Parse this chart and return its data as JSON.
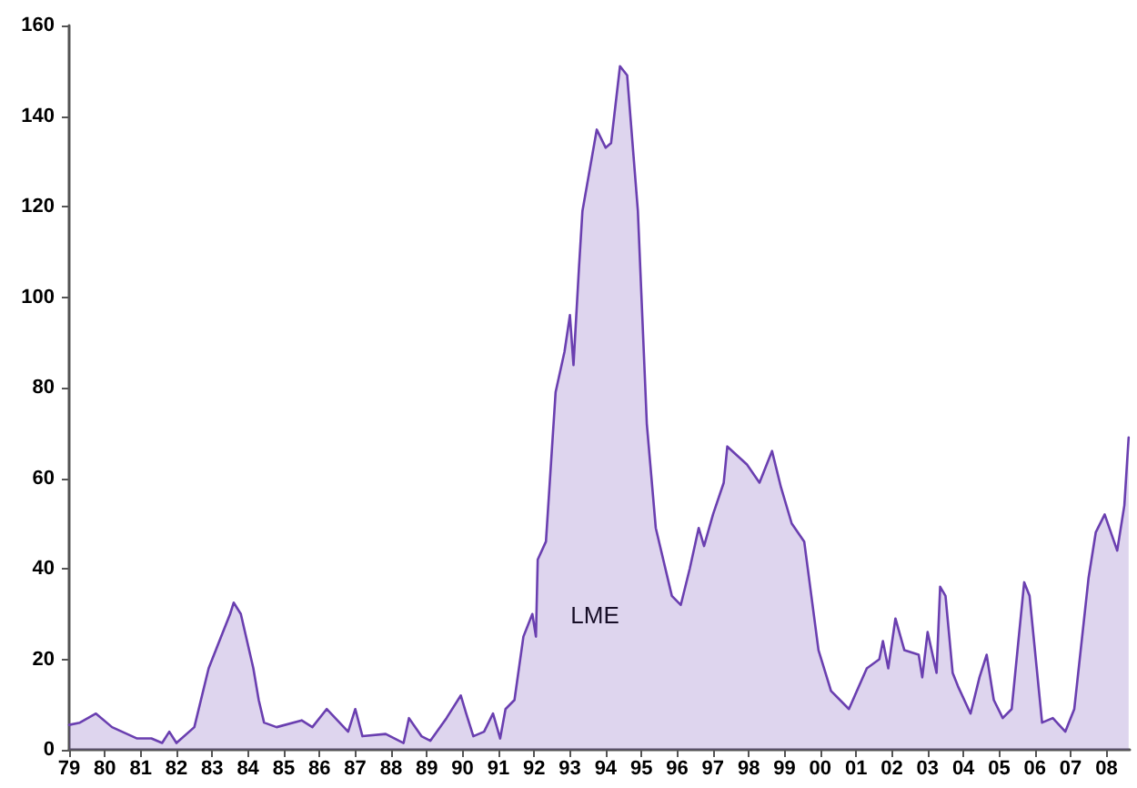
{
  "chart_data": {
    "type": "area",
    "x": [
      1979.0,
      1979.3,
      1979.75,
      1980.2,
      1980.9,
      1981.3,
      1981.6,
      1981.8,
      1982.0,
      1982.5,
      1982.9,
      1983.2,
      1983.5,
      1983.6,
      1983.8,
      1984.15,
      1984.3,
      1984.45,
      1984.8,
      1985.5,
      1985.8,
      1986.2,
      1986.5,
      1986.8,
      1987.0,
      1987.2,
      1987.85,
      1988.35,
      1988.5,
      1988.85,
      1989.1,
      1989.55,
      1989.95,
      1990.1,
      1990.3,
      1990.6,
      1990.85,
      1991.05,
      1991.2,
      1991.45,
      1991.7,
      1991.95,
      1992.05,
      1992.1,
      1992.33,
      1992.6,
      1992.85,
      1993.0,
      1993.1,
      1993.25,
      1993.35,
      1993.75,
      1994.0,
      1994.15,
      1994.4,
      1994.6,
      1994.9,
      1995.15,
      1995.4,
      1995.85,
      1996.1,
      1996.35,
      1996.6,
      1996.75,
      1997.0,
      1997.3,
      1997.4,
      1997.95,
      1998.3,
      1998.65,
      1998.9,
      1999.2,
      1999.55,
      1999.95,
      2000.3,
      2000.8,
      2001.3,
      2001.65,
      2001.75,
      2001.9,
      2002.1,
      2002.35,
      2002.75,
      2002.85,
      2003.0,
      2003.25,
      2003.35,
      2003.5,
      2003.7,
      2003.85,
      2004.2,
      2004.45,
      2004.65,
      2004.85,
      2005.1,
      2005.35,
      2005.7,
      2005.85,
      2006.2,
      2006.5,
      2006.85,
      2007.1,
      2007.5,
      2007.7,
      2007.95,
      2008.3,
      2008.5,
      2008.62
    ],
    "series": [
      {
        "color": "#6a3fb0",
        "values": [
          5.5,
          6,
          8,
          5,
          2.5,
          2.5,
          1.5,
          4,
          1.5,
          5,
          18,
          24,
          30,
          32.5,
          30,
          18,
          11,
          6,
          5,
          6.5,
          5,
          9,
          6.5,
          4,
          9,
          3,
          3.5,
          1.5,
          7,
          3,
          2,
          7,
          12,
          8,
          3,
          4,
          8,
          2.5,
          9,
          11,
          25,
          30,
          25,
          42,
          46,
          79,
          88,
          96,
          85,
          106,
          119,
          137,
          133,
          134,
          151,
          149,
          119,
          72,
          49,
          34,
          32,
          40,
          49,
          45,
          52,
          59,
          67,
          63,
          59,
          66,
          58,
          50,
          46,
          22,
          13,
          9,
          18,
          20,
          24,
          18,
          29,
          22,
          21,
          16,
          26,
          17,
          36,
          34,
          17,
          14,
          8,
          16,
          21,
          11,
          7,
          9,
          37,
          34,
          6,
          7,
          4,
          9,
          38,
          48,
          52,
          44,
          54,
          69
        ]
      }
    ],
    "ylim": [
      0,
      160
    ],
    "yticks": [
      0,
      20,
      40,
      60,
      80,
      100,
      120,
      140,
      160
    ],
    "xlim": [
      1979,
      2008.65
    ],
    "xticks": [
      {
        "value": 1979,
        "label": "79"
      },
      {
        "value": 1980,
        "label": "80"
      },
      {
        "value": 1981,
        "label": "81"
      },
      {
        "value": 1982,
        "label": "82"
      },
      {
        "value": 1983,
        "label": "83"
      },
      {
        "value": 1984,
        "label": "84"
      },
      {
        "value": 1985,
        "label": "85"
      },
      {
        "value": 1986,
        "label": "86"
      },
      {
        "value": 1987,
        "label": "87"
      },
      {
        "value": 1988,
        "label": "88"
      },
      {
        "value": 1989,
        "label": "89"
      },
      {
        "value": 1990,
        "label": "90"
      },
      {
        "value": 1991,
        "label": "91"
      },
      {
        "value": 1992,
        "label": "92"
      },
      {
        "value": 1993,
        "label": "93"
      },
      {
        "value": 1994,
        "label": "94"
      },
      {
        "value": 1995,
        "label": "95"
      },
      {
        "value": 1996,
        "label": "96"
      },
      {
        "value": 1997,
        "label": "97"
      },
      {
        "value": 1998,
        "label": "98"
      },
      {
        "value": 1999,
        "label": "99"
      },
      {
        "value": 2000,
        "label": "00"
      },
      {
        "value": 2001,
        "label": "01"
      },
      {
        "value": 2002,
        "label": "02"
      },
      {
        "value": 2003,
        "label": "03"
      },
      {
        "value": 2004,
        "label": "04"
      },
      {
        "value": 2005,
        "label": "05"
      },
      {
        "value": 2006,
        "label": "06"
      },
      {
        "value": 2007,
        "label": "07"
      },
      {
        "value": 2008,
        "label": "08"
      }
    ],
    "annotations": [
      "LME"
    ],
    "grid": false,
    "marker": "none",
    "line_style": "solid"
  }
}
